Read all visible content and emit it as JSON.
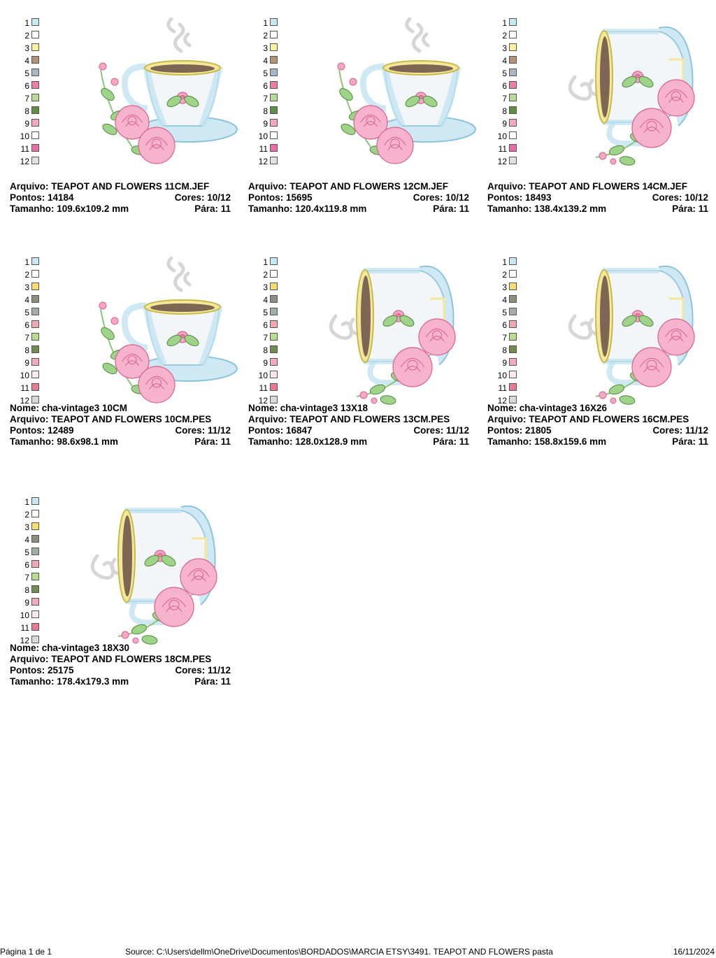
{
  "designs": [
    {
      "name": null,
      "file": "TEAPOT AND FLOWERS 11CM.JEF",
      "stitches": "14184",
      "colors": "10/12",
      "size": "109.6x109.2 mm",
      "stops": "11",
      "art": "cup-upright",
      "palette": [
        "#c6e8f2",
        "#ffffff",
        "#f8efa0",
        "#b39376",
        "#a7b7c6",
        "#ee7ea2",
        "#b8db9c",
        "#5f8f46",
        "#f6a6c2",
        "#ffffff",
        "#e96ea5",
        "#e2e2e2"
      ]
    },
    {
      "name": null,
      "file": "TEAPOT AND FLOWERS 12CM.JEF",
      "stitches": "15695",
      "colors": "10/12",
      "size": "120.4x119.8 mm",
      "stops": "11",
      "art": "cup-upright",
      "palette": [
        "#c6e8f2",
        "#ffffff",
        "#f8efa0",
        "#b39376",
        "#a7b7c6",
        "#ee7ea2",
        "#b8db9c",
        "#5f8f46",
        "#f6a6c2",
        "#ffffff",
        "#e96ea5",
        "#e2e2e2"
      ]
    },
    {
      "name": null,
      "file": "TEAPOT AND FLOWERS 14CM.JEF",
      "stitches": "18493",
      "colors": "10/12",
      "size": "138.4x139.2 mm",
      "stops": "11",
      "art": "cup-tipped",
      "palette": [
        "#c6e8f2",
        "#ffffff",
        "#f8efa0",
        "#b39376",
        "#a7b7c6",
        "#ee7ea2",
        "#b8db9c",
        "#5f8f46",
        "#f6a6c2",
        "#ffffff",
        "#e96ea5",
        "#e2e2e2"
      ]
    },
    {
      "name": "cha-vintage3 10CM",
      "file": "TEAPOT AND FLOWERS 10CM.PES",
      "stitches": "12489",
      "colors": "11/12",
      "size": "98.6x98.1 mm",
      "stops": "11",
      "art": "cup-upright",
      "palette": [
        "#c6e8f2",
        "#ffffff",
        "#f7dc6f",
        "#8e8e7e",
        "#9fb0a0",
        "#f3a7b2",
        "#b7dd8e",
        "#6f8d4d",
        "#f4a9bc",
        "#fde7ee",
        "#e77a8e",
        "#d9d9d9"
      ]
    },
    {
      "name": "cha-vintage3 13X18",
      "file": "TEAPOT AND FLOWERS 13CM.PES",
      "stitches": "16847",
      "colors": "11/12",
      "size": "128.0x128.9 mm",
      "stops": "11",
      "art": "cup-tipped",
      "palette": [
        "#c6e8f2",
        "#ffffff",
        "#f7dc6f",
        "#8e8e7e",
        "#9fb0a0",
        "#f3a7b2",
        "#b7dd8e",
        "#6f8d4d",
        "#f4a9bc",
        "#fde7ee",
        "#e77a8e",
        "#d9d9d9"
      ]
    },
    {
      "name": "cha-vintage3 16X26",
      "file": "TEAPOT AND FLOWERS 16CM.PES",
      "stitches": "21805",
      "colors": "11/12",
      "size": "158.8x159.6 mm",
      "stops": "11",
      "art": "cup-tipped",
      "palette": [
        "#c6e8f2",
        "#ffffff",
        "#f7dc6f",
        "#8e8e7e",
        "#9fb0a0",
        "#f3a7b2",
        "#b7dd8e",
        "#6f8d4d",
        "#f4a9bc",
        "#fde7ee",
        "#e77a8e",
        "#d9d9d9"
      ]
    },
    {
      "name": "cha-vintage3 18X30",
      "file": "TEAPOT AND FLOWERS 18CM.PES",
      "stitches": "25175",
      "colors": "11/12",
      "size": "178.4x179.3 mm",
      "stops": "11",
      "art": "cup-tipped",
      "palette": [
        "#c6e8f2",
        "#ffffff",
        "#f7dc6f",
        "#8e8e7e",
        "#9fb0a0",
        "#f3a7b2",
        "#b7dd8e",
        "#6f8d4d",
        "#f4a9bc",
        "#fde7ee",
        "#e77a8e",
        "#d9d9d9"
      ]
    }
  ],
  "labels": {
    "name": "Nome:",
    "file": "Arquivo:",
    "stitches": "Pontos:",
    "colors": "Cores:",
    "size": "Tamanho:",
    "stops": "Pára:"
  },
  "footer": {
    "page": "Página 1 de 1",
    "source": "Source: C:\\Users\\dellm\\OneDrive\\Documentos\\BORDADOS\\MARCIA ETSY\\3491. TEAPOT AND FLOWERS pasta",
    "date": "16/11/2024"
  }
}
